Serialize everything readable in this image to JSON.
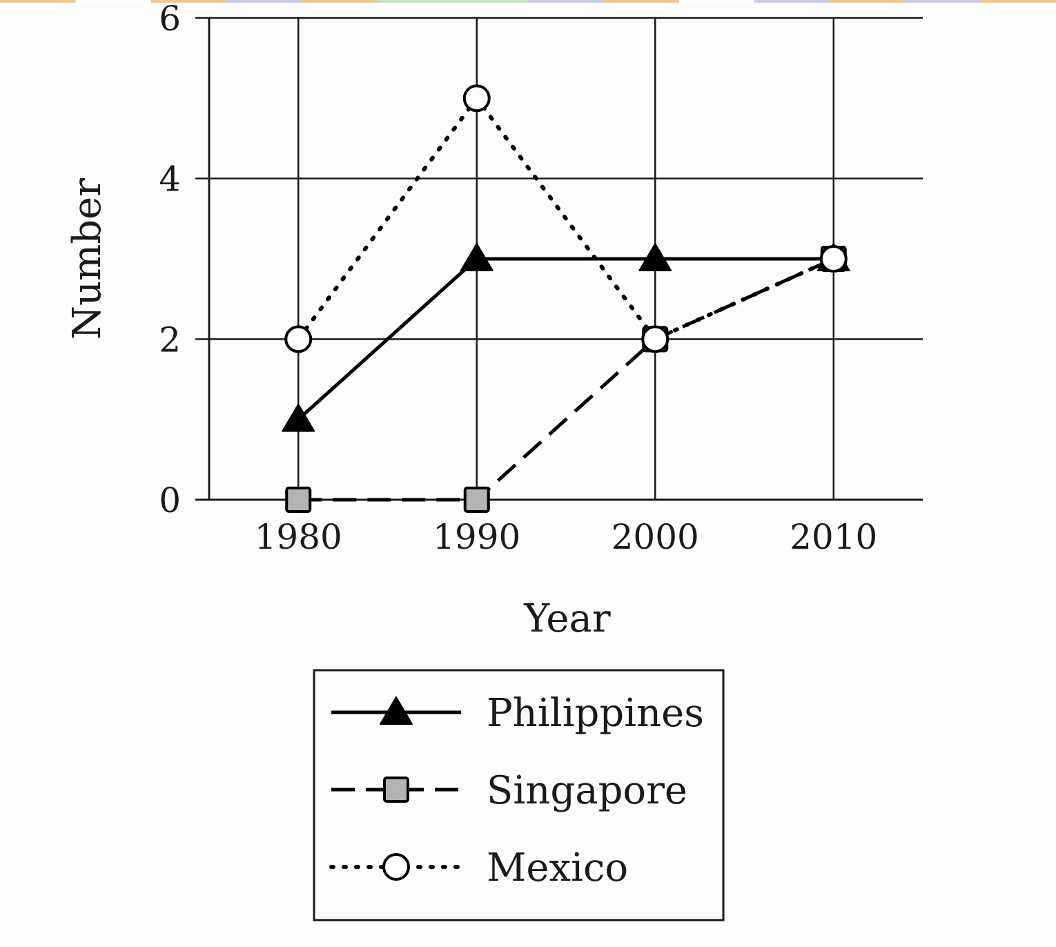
{
  "chart_data": {
    "type": "line",
    "title": "",
    "xlabel": "Year",
    "ylabel": "Number",
    "categories": [
      "1980",
      "1990",
      "2000",
      "2010"
    ],
    "x": [
      1980,
      1990,
      2000,
      2010
    ],
    "xlim": [
      1975,
      2015
    ],
    "ylim": [
      0,
      6
    ],
    "yticks": [
      0,
      2,
      4,
      6
    ],
    "grid": true,
    "legend_position": "below",
    "series": [
      {
        "name": "Philippines",
        "values": [
          1,
          3,
          3,
          3
        ],
        "marker": "triangle",
        "line_style": "solid",
        "marker_color": "#000000"
      },
      {
        "name": "Singapore",
        "values": [
          0,
          0,
          2,
          3
        ],
        "marker": "square",
        "line_style": "dashed",
        "marker_color": "#b3b3b3"
      },
      {
        "name": "Mexico",
        "values": [
          2,
          5,
          2,
          3
        ],
        "marker": "circle",
        "line_style": "dotted",
        "marker_color": "#ffffff"
      }
    ]
  }
}
